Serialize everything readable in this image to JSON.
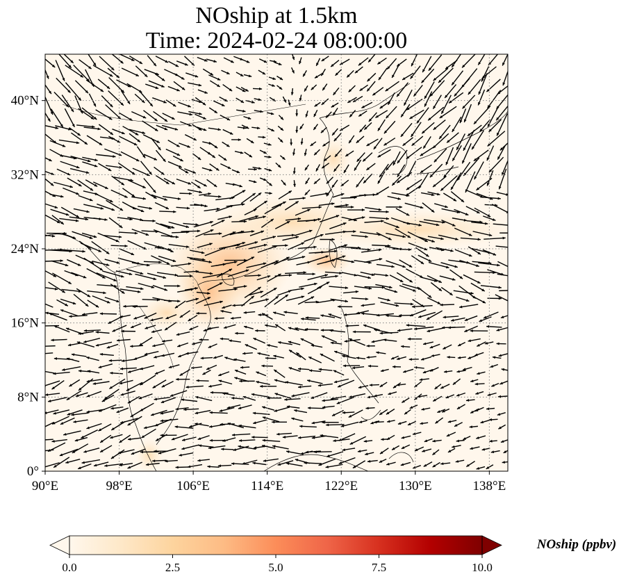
{
  "title": {
    "line1": "NOship at 1.5km",
    "line2": "Time: 2024-02-24 08:00:00"
  },
  "map": {
    "projection": "PlateCarree",
    "lon_range": [
      90,
      140
    ],
    "lat_range": [
      0,
      45
    ],
    "field_cmap": "OrRd",
    "gridlines": "dotted",
    "vectors": "wind arrows (black)"
  },
  "axes": {
    "x_ticks": [
      "90°E",
      "98°E",
      "106°E",
      "114°E",
      "122°E",
      "130°E",
      "138°E"
    ],
    "x_tick_values": [
      90,
      98,
      106,
      114,
      122,
      130,
      138
    ],
    "y_ticks": [
      "0°",
      "8°N",
      "16°N",
      "24°N",
      "32°N",
      "40°N"
    ],
    "y_tick_values": [
      0,
      8,
      16,
      24,
      32,
      40
    ]
  },
  "colorbar": {
    "label": "NOship (ppbv)",
    "ticks": [
      "0.0",
      "2.5",
      "5.0",
      "7.5",
      "10.0"
    ],
    "min": 0,
    "max": 10,
    "extend": "both",
    "colors": [
      "#fff7ec",
      "#fee8c8",
      "#fdd49e",
      "#fdbb84",
      "#fc8d59",
      "#ef6548",
      "#d7301f",
      "#b30000",
      "#7f0000"
    ]
  }
}
